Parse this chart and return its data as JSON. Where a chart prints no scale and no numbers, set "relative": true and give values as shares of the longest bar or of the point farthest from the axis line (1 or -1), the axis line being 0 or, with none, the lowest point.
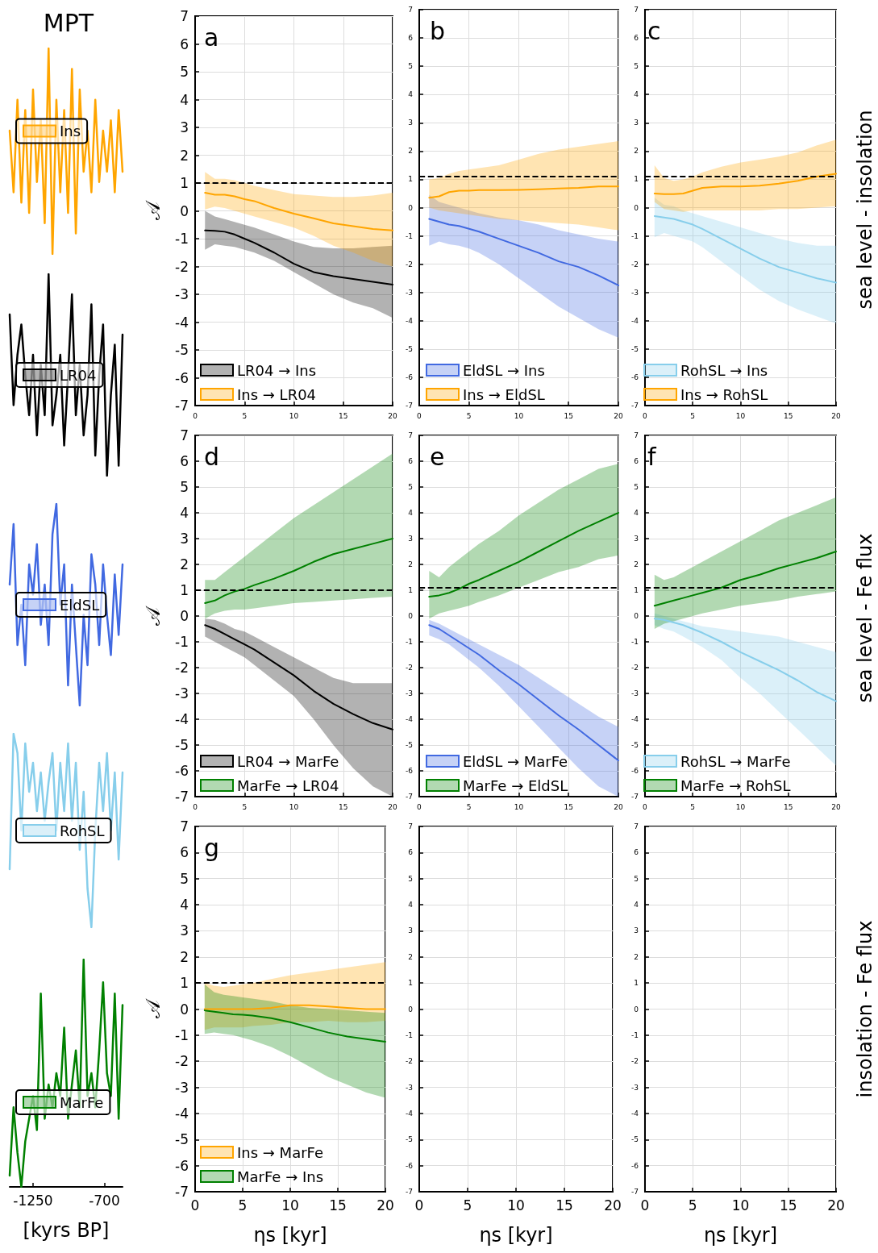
{
  "chart_data": [
    {
      "type": "line",
      "title": "a",
      "ylabel": "𝒜",
      "x": [
        1,
        2,
        3,
        4,
        5,
        6,
        8,
        10,
        12,
        14,
        16,
        18,
        20
      ],
      "xlim": [
        0,
        20
      ],
      "xticks": [
        0,
        5,
        10,
        15,
        20
      ],
      "ylim": [
        -7,
        7
      ],
      "yticks": [
        -7,
        -6,
        -5,
        -4,
        -3,
        -2,
        -1,
        0,
        1,
        2,
        3,
        4,
        5,
        6,
        7
      ],
      "grid": true,
      "legend": "bottom left",
      "ref_lines": [
        {
          "axis": "y",
          "value": 1,
          "color": "#000000",
          "line_style": "dashed"
        }
      ],
      "series": [
        {
          "name": "LR04 → Ins",
          "color": "#000000",
          "values": [
            -0.7,
            -0.72,
            -0.75,
            -0.85,
            -1.0,
            -1.15,
            -1.5,
            -1.9,
            -2.2,
            -2.35,
            -2.45,
            -2.55,
            -2.65
          ],
          "upper": [
            0,
            -0.2,
            -0.3,
            -0.4,
            -0.5,
            -0.6,
            -0.85,
            -1.1,
            -1.3,
            -1.35,
            -1.35,
            -1.3,
            -1.25
          ],
          "lower": [
            -1.4,
            -1.2,
            -1.25,
            -1.3,
            -1.4,
            -1.5,
            -1.8,
            -2.2,
            -2.6,
            -3.0,
            -3.3,
            -3.5,
            -3.85
          ]
        },
        {
          "name": "Ins → LR04",
          "color": "#ffa500",
          "values": [
            0.65,
            0.58,
            0.58,
            0.52,
            0.42,
            0.35,
            0.1,
            -0.1,
            -0.27,
            -0.45,
            -0.55,
            -0.65,
            -0.7
          ],
          "upper": [
            1.4,
            1.15,
            1.15,
            1.1,
            1.0,
            0.9,
            0.75,
            0.6,
            0.55,
            0.5,
            0.5,
            0.55,
            0.65
          ],
          "lower": [
            0.05,
            0.15,
            0.1,
            0,
            -0.1,
            -0.2,
            -0.4,
            -0.6,
            -0.9,
            -1.25,
            -1.5,
            -1.8,
            -2.0
          ]
        }
      ]
    },
    {
      "type": "line",
      "title": "b",
      "x": [
        1,
        2,
        3,
        4,
        5,
        6,
        8,
        10,
        12,
        14,
        16,
        18,
        20
      ],
      "xlim": [
        0,
        20
      ],
      "xticks": [
        0,
        5,
        10,
        15,
        20
      ],
      "ylim": [
        -7,
        7
      ],
      "yticks": [
        -7,
        -6,
        -5,
        -4,
        -3,
        -2,
        -1,
        0,
        1,
        2,
        3,
        4,
        5,
        6,
        7
      ],
      "grid": true,
      "legend": "bottom left",
      "ref_lines": [
        {
          "axis": "y",
          "value": 1.1,
          "color": "#000000",
          "line_style": "dashed"
        }
      ],
      "series": [
        {
          "name": "EldSL → Ins",
          "color": "#4169e1",
          "values": [
            -0.4,
            -0.5,
            -0.6,
            -0.65,
            -0.75,
            -0.85,
            -1.1,
            -1.35,
            -1.6,
            -1.9,
            -2.1,
            -2.4,
            -2.75
          ],
          "upper": [
            0.45,
            0.2,
            0.1,
            0,
            -0.1,
            -0.2,
            -0.35,
            -0.45,
            -0.6,
            -0.8,
            -0.95,
            -1.1,
            -1.2
          ],
          "lower": [
            -1.35,
            -1.2,
            -1.3,
            -1.35,
            -1.45,
            -1.6,
            -2.0,
            -2.5,
            -3.0,
            -3.5,
            -3.9,
            -4.3,
            -4.6
          ]
        },
        {
          "name": "Ins → EldSL",
          "color": "#ffa500",
          "values": [
            0.35,
            0.4,
            0.55,
            0.6,
            0.6,
            0.62,
            0.62,
            0.63,
            0.65,
            0.68,
            0.7,
            0.75,
            0.75
          ],
          "upper": [
            1.0,
            1.05,
            1.2,
            1.3,
            1.35,
            1.4,
            1.5,
            1.7,
            1.9,
            2.05,
            2.15,
            2.25,
            2.35
          ],
          "lower": [
            0,
            -0.1,
            -0.15,
            -0.2,
            -0.25,
            -0.3,
            -0.4,
            -0.45,
            -0.5,
            -0.55,
            -0.6,
            -0.7,
            -0.8
          ]
        }
      ]
    },
    {
      "type": "line",
      "title": "c",
      "annotations": [
        "sea level - insolation"
      ],
      "x": [
        1,
        2,
        3,
        4,
        5,
        6,
        8,
        10,
        12,
        14,
        16,
        18,
        20
      ],
      "xlim": [
        0,
        20
      ],
      "xticks": [
        0,
        5,
        10,
        15,
        20
      ],
      "ylim": [
        -7,
        7
      ],
      "yticks": [
        -7,
        -6,
        -5,
        -4,
        -3,
        -2,
        -1,
        0,
        1,
        2,
        3,
        4,
        5,
        6,
        7
      ],
      "grid": true,
      "legend": "bottom left",
      "ref_lines": [
        {
          "axis": "y",
          "value": 1.1,
          "color": "#000000",
          "line_style": "dashed"
        }
      ],
      "series": [
        {
          "name": "RohSL → Ins",
          "color": "#87ceeb",
          "values": [
            -0.3,
            -0.35,
            -0.4,
            -0.5,
            -0.6,
            -0.75,
            -1.1,
            -1.45,
            -1.8,
            -2.1,
            -2.3,
            -2.5,
            -2.65
          ],
          "upper": [
            0.35,
            0.1,
            0.05,
            -0.1,
            -0.2,
            -0.3,
            -0.5,
            -0.7,
            -0.9,
            -1.1,
            -1.25,
            -1.35,
            -1.35
          ],
          "lower": [
            -1.05,
            -0.9,
            -1.0,
            -1.1,
            -1.2,
            -1.4,
            -1.9,
            -2.4,
            -2.9,
            -3.3,
            -3.6,
            -3.85,
            -4.1
          ]
        },
        {
          "name": "Ins → RohSL",
          "color": "#ffa500",
          "values": [
            0.5,
            0.48,
            0.48,
            0.5,
            0.6,
            0.7,
            0.75,
            0.75,
            0.78,
            0.85,
            0.95,
            1.1,
            1.2
          ],
          "upper": [
            1.5,
            1.05,
            0.95,
            1.0,
            1.1,
            1.25,
            1.45,
            1.6,
            1.7,
            1.8,
            1.95,
            2.2,
            2.4
          ],
          "lower": [
            0.2,
            -0.05,
            -0.1,
            -0.15,
            -0.1,
            -0.1,
            -0.1,
            -0.1,
            -0.1,
            -0.05,
            -0.05,
            0,
            0.05
          ]
        }
      ]
    },
    {
      "type": "line",
      "title": "d",
      "ylabel": "𝒜",
      "x": [
        1,
        2,
        3,
        4,
        5,
        6,
        8,
        10,
        12,
        14,
        16,
        18,
        20
      ],
      "xlim": [
        0,
        20
      ],
      "xticks": [
        0,
        5,
        10,
        15,
        20
      ],
      "ylim": [
        -7,
        7
      ],
      "yticks": [
        -7,
        -6,
        -5,
        -4,
        -3,
        -2,
        -1,
        0,
        1,
        2,
        3,
        4,
        5,
        6,
        7
      ],
      "grid": true,
      "legend": "bottom left",
      "ref_lines": [
        {
          "axis": "y",
          "value": 1,
          "color": "#000000",
          "line_style": "dashed"
        }
      ],
      "series": [
        {
          "name": "LR04 → MarFe",
          "color": "#000000",
          "values": [
            -0.35,
            -0.5,
            -0.7,
            -0.9,
            -1.1,
            -1.3,
            -1.8,
            -2.3,
            -2.9,
            -3.4,
            -3.8,
            -4.15,
            -4.4
          ],
          "upper": [
            -0.1,
            -0.15,
            -0.3,
            -0.5,
            -0.6,
            -0.8,
            -1.2,
            -1.6,
            -2.0,
            -2.4,
            -2.6,
            -2.6,
            -2.6
          ],
          "lower": [
            -0.8,
            -1.0,
            -1.2,
            -1.4,
            -1.6,
            -1.9,
            -2.5,
            -3.1,
            -4.0,
            -5.0,
            -5.9,
            -6.6,
            -7.0
          ]
        },
        {
          "name": "MarFe → LR04",
          "color": "#008000",
          "values": [
            0.5,
            0.6,
            0.8,
            0.95,
            1.05,
            1.2,
            1.45,
            1.75,
            2.1,
            2.4,
            2.6,
            2.8,
            3.0
          ],
          "upper": [
            1.4,
            1.4,
            1.7,
            2.0,
            2.3,
            2.6,
            3.2,
            3.8,
            4.3,
            4.8,
            5.3,
            5.8,
            6.3
          ],
          "lower": [
            -0.1,
            0.1,
            0.2,
            0.25,
            0.25,
            0.3,
            0.4,
            0.5,
            0.55,
            0.6,
            0.65,
            0.7,
            0.75
          ]
        }
      ]
    },
    {
      "type": "line",
      "title": "e",
      "x": [
        1,
        2,
        3,
        4,
        5,
        6,
        8,
        10,
        12,
        14,
        16,
        18,
        20
      ],
      "xlim": [
        0,
        20
      ],
      "xticks": [
        0,
        5,
        10,
        15,
        20
      ],
      "ylim": [
        -7,
        7
      ],
      "yticks": [
        -7,
        -6,
        -5,
        -4,
        -3,
        -2,
        -1,
        0,
        1,
        2,
        3,
        4,
        5,
        6,
        7
      ],
      "grid": true,
      "legend": "bottom left",
      "ref_lines": [
        {
          "axis": "y",
          "value": 1.1,
          "color": "#000000",
          "line_style": "dashed"
        }
      ],
      "series": [
        {
          "name": "EldSL → MarFe",
          "color": "#4169e1",
          "values": [
            -0.35,
            -0.5,
            -0.75,
            -1.0,
            -1.25,
            -1.5,
            -2.1,
            -2.65,
            -3.25,
            -3.85,
            -4.4,
            -5.0,
            -5.6
          ],
          "upper": [
            -0.15,
            -0.3,
            -0.5,
            -0.7,
            -0.9,
            -1.1,
            -1.5,
            -1.9,
            -2.4,
            -2.9,
            -3.4,
            -3.9,
            -4.3
          ],
          "lower": [
            -0.75,
            -0.9,
            -1.1,
            -1.4,
            -1.7,
            -2.0,
            -2.7,
            -3.5,
            -4.3,
            -5.1,
            -5.9,
            -6.6,
            -7.0
          ]
        },
        {
          "name": "MarFe → EldSL",
          "color": "#008000",
          "values": [
            0.75,
            0.8,
            0.9,
            1.05,
            1.25,
            1.4,
            1.75,
            2.1,
            2.5,
            2.9,
            3.3,
            3.65,
            4.0
          ],
          "upper": [
            1.75,
            1.5,
            1.9,
            2.2,
            2.5,
            2.8,
            3.3,
            3.9,
            4.4,
            4.9,
            5.3,
            5.7,
            5.9
          ],
          "lower": [
            -0.1,
            0.1,
            0.2,
            0.3,
            0.4,
            0.55,
            0.8,
            1.1,
            1.4,
            1.7,
            1.9,
            2.2,
            2.35
          ]
        }
      ]
    },
    {
      "type": "line",
      "title": "f",
      "annotations": [
        "sea level - Fe flux"
      ],
      "x": [
        1,
        2,
        3,
        4,
        5,
        6,
        8,
        10,
        12,
        14,
        16,
        18,
        20
      ],
      "xlim": [
        0,
        20
      ],
      "xticks": [
        0,
        5,
        10,
        15,
        20
      ],
      "ylim": [
        -7,
        7
      ],
      "yticks": [
        -7,
        -6,
        -5,
        -4,
        -3,
        -2,
        -1,
        0,
        1,
        2,
        3,
        4,
        5,
        6,
        7
      ],
      "grid": true,
      "legend": "bottom left",
      "ref_lines": [
        {
          "axis": "y",
          "value": 1.1,
          "color": "#000000",
          "line_style": "dashed"
        }
      ],
      "series": [
        {
          "name": "RohSL → MarFe",
          "color": "#87ceeb",
          "values": [
            -0.1,
            -0.15,
            -0.25,
            -0.35,
            -0.5,
            -0.65,
            -1.0,
            -1.4,
            -1.75,
            -2.1,
            -2.5,
            -2.95,
            -3.3
          ],
          "upper": [
            0.1,
            0,
            -0.1,
            -0.2,
            -0.3,
            -0.4,
            -0.5,
            -0.6,
            -0.7,
            -0.8,
            -1.0,
            -1.2,
            -1.4
          ],
          "lower": [
            -0.35,
            -0.5,
            -0.6,
            -0.8,
            -1.0,
            -1.2,
            -1.7,
            -2.4,
            -3.0,
            -3.7,
            -4.4,
            -5.1,
            -5.8
          ]
        },
        {
          "name": "MarFe → RohSL",
          "color": "#008000",
          "values": [
            0.4,
            0.5,
            0.6,
            0.7,
            0.8,
            0.9,
            1.1,
            1.4,
            1.6,
            1.85,
            2.05,
            2.25,
            2.5
          ],
          "upper": [
            1.6,
            1.4,
            1.5,
            1.7,
            1.9,
            2.1,
            2.5,
            2.9,
            3.3,
            3.7,
            4.0,
            4.3,
            4.6
          ],
          "lower": [
            -0.5,
            -0.3,
            -0.2,
            -0.1,
            0,
            0.1,
            0.25,
            0.4,
            0.5,
            0.6,
            0.75,
            0.85,
            0.95
          ]
        }
      ]
    },
    {
      "type": "line",
      "title": "g",
      "ylabel": "𝒜",
      "xlabel": "ηs [kyr]",
      "x": [
        1,
        2,
        3,
        4,
        5,
        6,
        8,
        10,
        12,
        14,
        16,
        18,
        20
      ],
      "xlim": [
        0,
        20
      ],
      "xticks": [
        0,
        5,
        10,
        15,
        20
      ],
      "ylim": [
        -7,
        7
      ],
      "yticks": [
        -7,
        -6,
        -5,
        -4,
        -3,
        -2,
        -1,
        0,
        1,
        2,
        3,
        4,
        5,
        6,
        7
      ],
      "grid": true,
      "legend": "bottom left",
      "ref_lines": [
        {
          "axis": "y",
          "value": 1,
          "color": "#000000",
          "line_style": "dashed"
        }
      ],
      "series": [
        {
          "name": "Ins → MarFe",
          "color": "#ffa500",
          "values": [
            0,
            0,
            0,
            0,
            0,
            0,
            0.05,
            0.15,
            0.15,
            0.1,
            0.05,
            0,
            0
          ],
          "upper": [
            1.0,
            0.9,
            0.85,
            0.9,
            0.95,
            1.0,
            1.15,
            1.3,
            1.4,
            1.5,
            1.6,
            1.7,
            1.8
          ],
          "lower": [
            -0.8,
            -0.7,
            -0.7,
            -0.7,
            -0.7,
            -0.65,
            -0.6,
            -0.5,
            -0.5,
            -0.45,
            -0.5,
            -0.5,
            -0.45
          ]
        },
        {
          "name": "MarFe → Ins",
          "color": "#008000",
          "values": [
            -0.05,
            -0.1,
            -0.15,
            -0.2,
            -0.22,
            -0.25,
            -0.35,
            -0.5,
            -0.7,
            -0.9,
            -1.05,
            -1.15,
            -1.25
          ],
          "upper": [
            0.95,
            0.65,
            0.55,
            0.5,
            0.45,
            0.4,
            0.3,
            0.15,
            0.05,
            0,
            -0.05,
            -0.1,
            -0.15
          ],
          "lower": [
            -0.95,
            -0.9,
            -0.95,
            -1.0,
            -1.1,
            -1.2,
            -1.45,
            -1.8,
            -2.2,
            -2.6,
            -2.9,
            -3.2,
            -3.4
          ]
        }
      ]
    },
    {
      "type": "line",
      "xlabel": "ηs [kyr]",
      "xlim": [
        0,
        20
      ],
      "xticks": [
        0,
        5,
        10,
        15,
        20
      ],
      "ylim": [
        -7,
        7
      ],
      "yticks": [
        -7,
        -6,
        -5,
        -4,
        -3,
        -2,
        -1,
        0,
        1,
        2,
        3,
        4,
        5,
        6,
        7
      ],
      "grid": true
    },
    {
      "type": "line",
      "xlabel": "ηs [kyr]",
      "annotations": [
        "insolation - Fe flux"
      ],
      "xlim": [
        0,
        20
      ],
      "xticks": [
        0,
        5,
        10,
        15,
        20
      ],
      "ylim": [
        -7,
        7
      ],
      "yticks": [
        -7,
        -6,
        -5,
        -4,
        -3,
        -2,
        -1,
        0,
        1,
        2,
        3,
        4,
        5,
        6,
        7
      ],
      "grid": true
    },
    {
      "type": "line",
      "title": "MPT",
      "relative": true,
      "tick_labels": false,
      "legend": "left",
      "categories": [
        null,
        null,
        null,
        null,
        null,
        null,
        null,
        null,
        null,
        null,
        null,
        null,
        null,
        null,
        null,
        null,
        null,
        null,
        null,
        null,
        null,
        null,
        null,
        null,
        null,
        null,
        null,
        null,
        null,
        null
      ],
      "series": [
        {
          "name": "Ins",
          "color": "#ffa500",
          "values": [
            0.6,
            0.3,
            0.75,
            0.25,
            0.7,
            0.2,
            0.8,
            0.35,
            0.65,
            0.15,
            1.0,
            0,
            0.75,
            0.3,
            0.7,
            0.2,
            0.9,
            0.1,
            0.8,
            0.4,
            0.6,
            0.3,
            0.75,
            0.35,
            0.6,
            0.4,
            0.65,
            0.3,
            0.7,
            0.4
          ]
        }
      ]
    },
    {
      "type": "line",
      "relative": true,
      "tick_labels": false,
      "legend": "left",
      "categories": [
        null,
        null,
        null,
        null,
        null,
        null,
        null,
        null,
        null,
        null,
        null,
        null,
        null,
        null,
        null,
        null,
        null,
        null,
        null,
        null,
        null,
        null,
        null,
        null,
        null,
        null,
        null,
        null,
        null,
        null
      ],
      "series": [
        {
          "name": "LR04",
          "color": "#000000",
          "values": [
            0.8,
            0.35,
            0.6,
            0.75,
            0.5,
            0.3,
            0.6,
            0.2,
            0.55,
            0.3,
            1.0,
            0.25,
            0.4,
            0.6,
            0.15,
            0.5,
            0.9,
            0.3,
            0.55,
            0.2,
            0.4,
            0.85,
            0.1,
            0.5,
            0.75,
            0,
            0.4,
            0.65,
            0.05,
            0.7
          ]
        }
      ]
    },
    {
      "type": "line",
      "relative": true,
      "tick_labels": false,
      "legend": "left",
      "categories": [
        null,
        null,
        null,
        null,
        null,
        null,
        null,
        null,
        null,
        null,
        null,
        null,
        null,
        null,
        null,
        null,
        null,
        null,
        null,
        null,
        null,
        null,
        null,
        null,
        null,
        null,
        null,
        null,
        null,
        null
      ],
      "series": [
        {
          "name": "EldSL",
          "color": "#4169e1",
          "values": [
            0.6,
            0.9,
            0.3,
            0.5,
            0.2,
            0.7,
            0.55,
            0.8,
            0.4,
            0.6,
            0.3,
            0.85,
            1.0,
            0.5,
            0.7,
            0.1,
            0.6,
            0.3,
            0,
            0.45,
            0.2,
            0.75,
            0.6,
            0.3,
            0.7,
            0.45,
            0.25,
            0.65,
            0.35,
            0.7
          ]
        }
      ]
    },
    {
      "type": "line",
      "relative": true,
      "tick_labels": false,
      "legend": "left",
      "categories": [
        null,
        null,
        null,
        null,
        null,
        null,
        null,
        null,
        null,
        null,
        null,
        null,
        null,
        null,
        null,
        null,
        null,
        null,
        null,
        null,
        null,
        null,
        null,
        null,
        null,
        null,
        null,
        null,
        null,
        null
      ],
      "series": [
        {
          "name": "RohSL",
          "color": "#87ceeb",
          "values": [
            0.3,
            1.0,
            0.9,
            0.5,
            0.95,
            0.7,
            0.85,
            0.6,
            0.8,
            0.55,
            0.75,
            0.9,
            0.5,
            0.85,
            0.6,
            0.95,
            0.55,
            0.85,
            0.4,
            0.7,
            0.2,
            0,
            0.5,
            0.85,
            0.6,
            0.9,
            0.5,
            0.8,
            0.35,
            0.8
          ]
        }
      ]
    },
    {
      "type": "line",
      "relative": true,
      "tick_labels": "x",
      "legend": "left",
      "xlabel": "[kyrs BP]",
      "xlim": [
        -1430,
        -560
      ],
      "xticks": [
        -1250,
        -700
      ],
      "x": [
        -1430,
        -1400,
        -1370,
        -1340,
        -1310,
        -1280,
        -1250,
        -1220,
        -1190,
        -1160,
        -1130,
        -1100,
        -1070,
        -1040,
        -1010,
        -980,
        -950,
        -920,
        -890,
        -860,
        -830,
        -800,
        -770,
        -740,
        -710,
        -680,
        -650,
        -620,
        -590,
        -560
      ],
      "series": [
        {
          "name": "MarFe",
          "color": "#008000",
          "values": [
            0.05,
            0.35,
            0.15,
            0,
            0.2,
            0.3,
            0.4,
            0.25,
            0.85,
            0.3,
            0.45,
            0.35,
            0.5,
            0.4,
            0.7,
            0.3,
            0.45,
            0.6,
            0.35,
            1.0,
            0.4,
            0.5,
            0.35,
            0.6,
            0.9,
            0.5,
            0.4,
            0.85,
            0.3,
            0.8
          ]
        }
      ]
    }
  ]
}
